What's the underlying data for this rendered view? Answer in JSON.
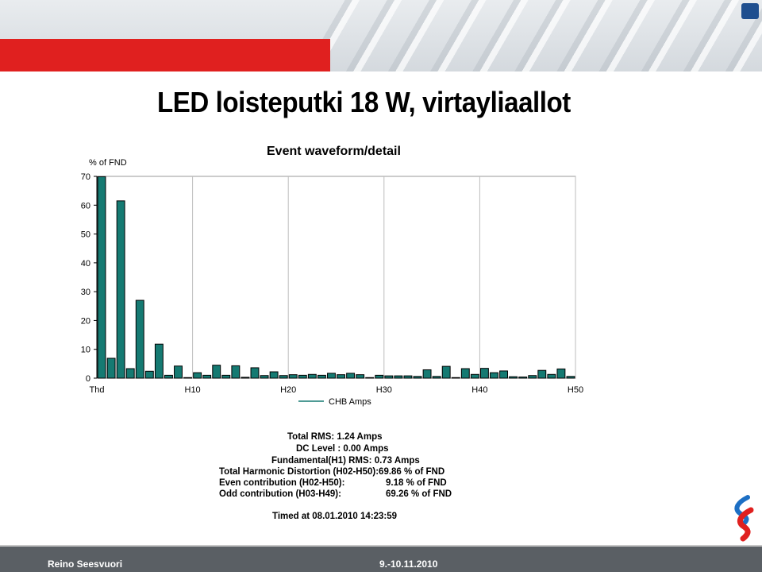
{
  "slide": {
    "title": "LED loisteputki 18 W, virtayliaallot",
    "footer_author": "Reino Seesvuori",
    "footer_date": "9.-10.11.2010"
  },
  "chart_data": {
    "type": "bar",
    "title": "Event waveform/detail",
    "ylabel": "% of FND",
    "ylim": [
      0,
      70
    ],
    "yticks": [
      0,
      10,
      20,
      30,
      40,
      50,
      60,
      70
    ],
    "xtick_labels": [
      "Thd",
      "H10",
      "H20",
      "H30",
      "H40",
      "H50"
    ],
    "legend": "CHB Amps",
    "legend_position": "bottom",
    "grid": "vertical",
    "categories": [
      "Thd",
      "H2",
      "H3",
      "H4",
      "H5",
      "H6",
      "H7",
      "H8",
      "H9",
      "H10",
      "H11",
      "H12",
      "H13",
      "H14",
      "H15",
      "H16",
      "H17",
      "H18",
      "H19",
      "H20",
      "H21",
      "H22",
      "H23",
      "H24",
      "H25",
      "H26",
      "H27",
      "H28",
      "H29",
      "H30",
      "H31",
      "H32",
      "H33",
      "H34",
      "H35",
      "H36",
      "H37",
      "H38",
      "H39",
      "H40",
      "H41",
      "H42",
      "H43",
      "H44",
      "H45",
      "H46",
      "H47",
      "H48",
      "H49",
      "H50"
    ],
    "values": [
      69.9,
      6.9,
      61.5,
      3.3,
      27.0,
      2.4,
      11.8,
      1.0,
      4.2,
      0.2,
      1.9,
      1.0,
      4.5,
      1.0,
      4.3,
      0.3,
      3.6,
      0.9,
      2.2,
      0.9,
      1.2,
      1.0,
      1.3,
      1.0,
      1.7,
      1.2,
      1.7,
      1.2,
      0.2,
      1.0,
      0.8,
      0.8,
      0.8,
      0.6,
      2.9,
      0.6,
      4.1,
      0.2,
      3.3,
      1.3,
      3.4,
      1.9,
      2.5,
      0.5,
      0.4,
      0.9,
      2.7,
      1.3,
      3.2,
      0.6
    ],
    "bar_color": "#157a72"
  },
  "stats": {
    "total_rms": "Total RMS: 1.24 Amps",
    "dc_level": "DC Level : 0.00 Amps",
    "fundamental": "Fundamental(H1) RMS: 0.73 Amps",
    "thd": "Total Harmonic Distortion (H02-H50):69.86 % of FND",
    "even_label": "Even contribution (H02-H50):",
    "even_value": "9.18 % of FND",
    "odd_label": "Odd  contribution (H03-H49):",
    "odd_value": "69.26 % of FND",
    "timed": "Timed at 08.01.2010 14:23:59"
  }
}
